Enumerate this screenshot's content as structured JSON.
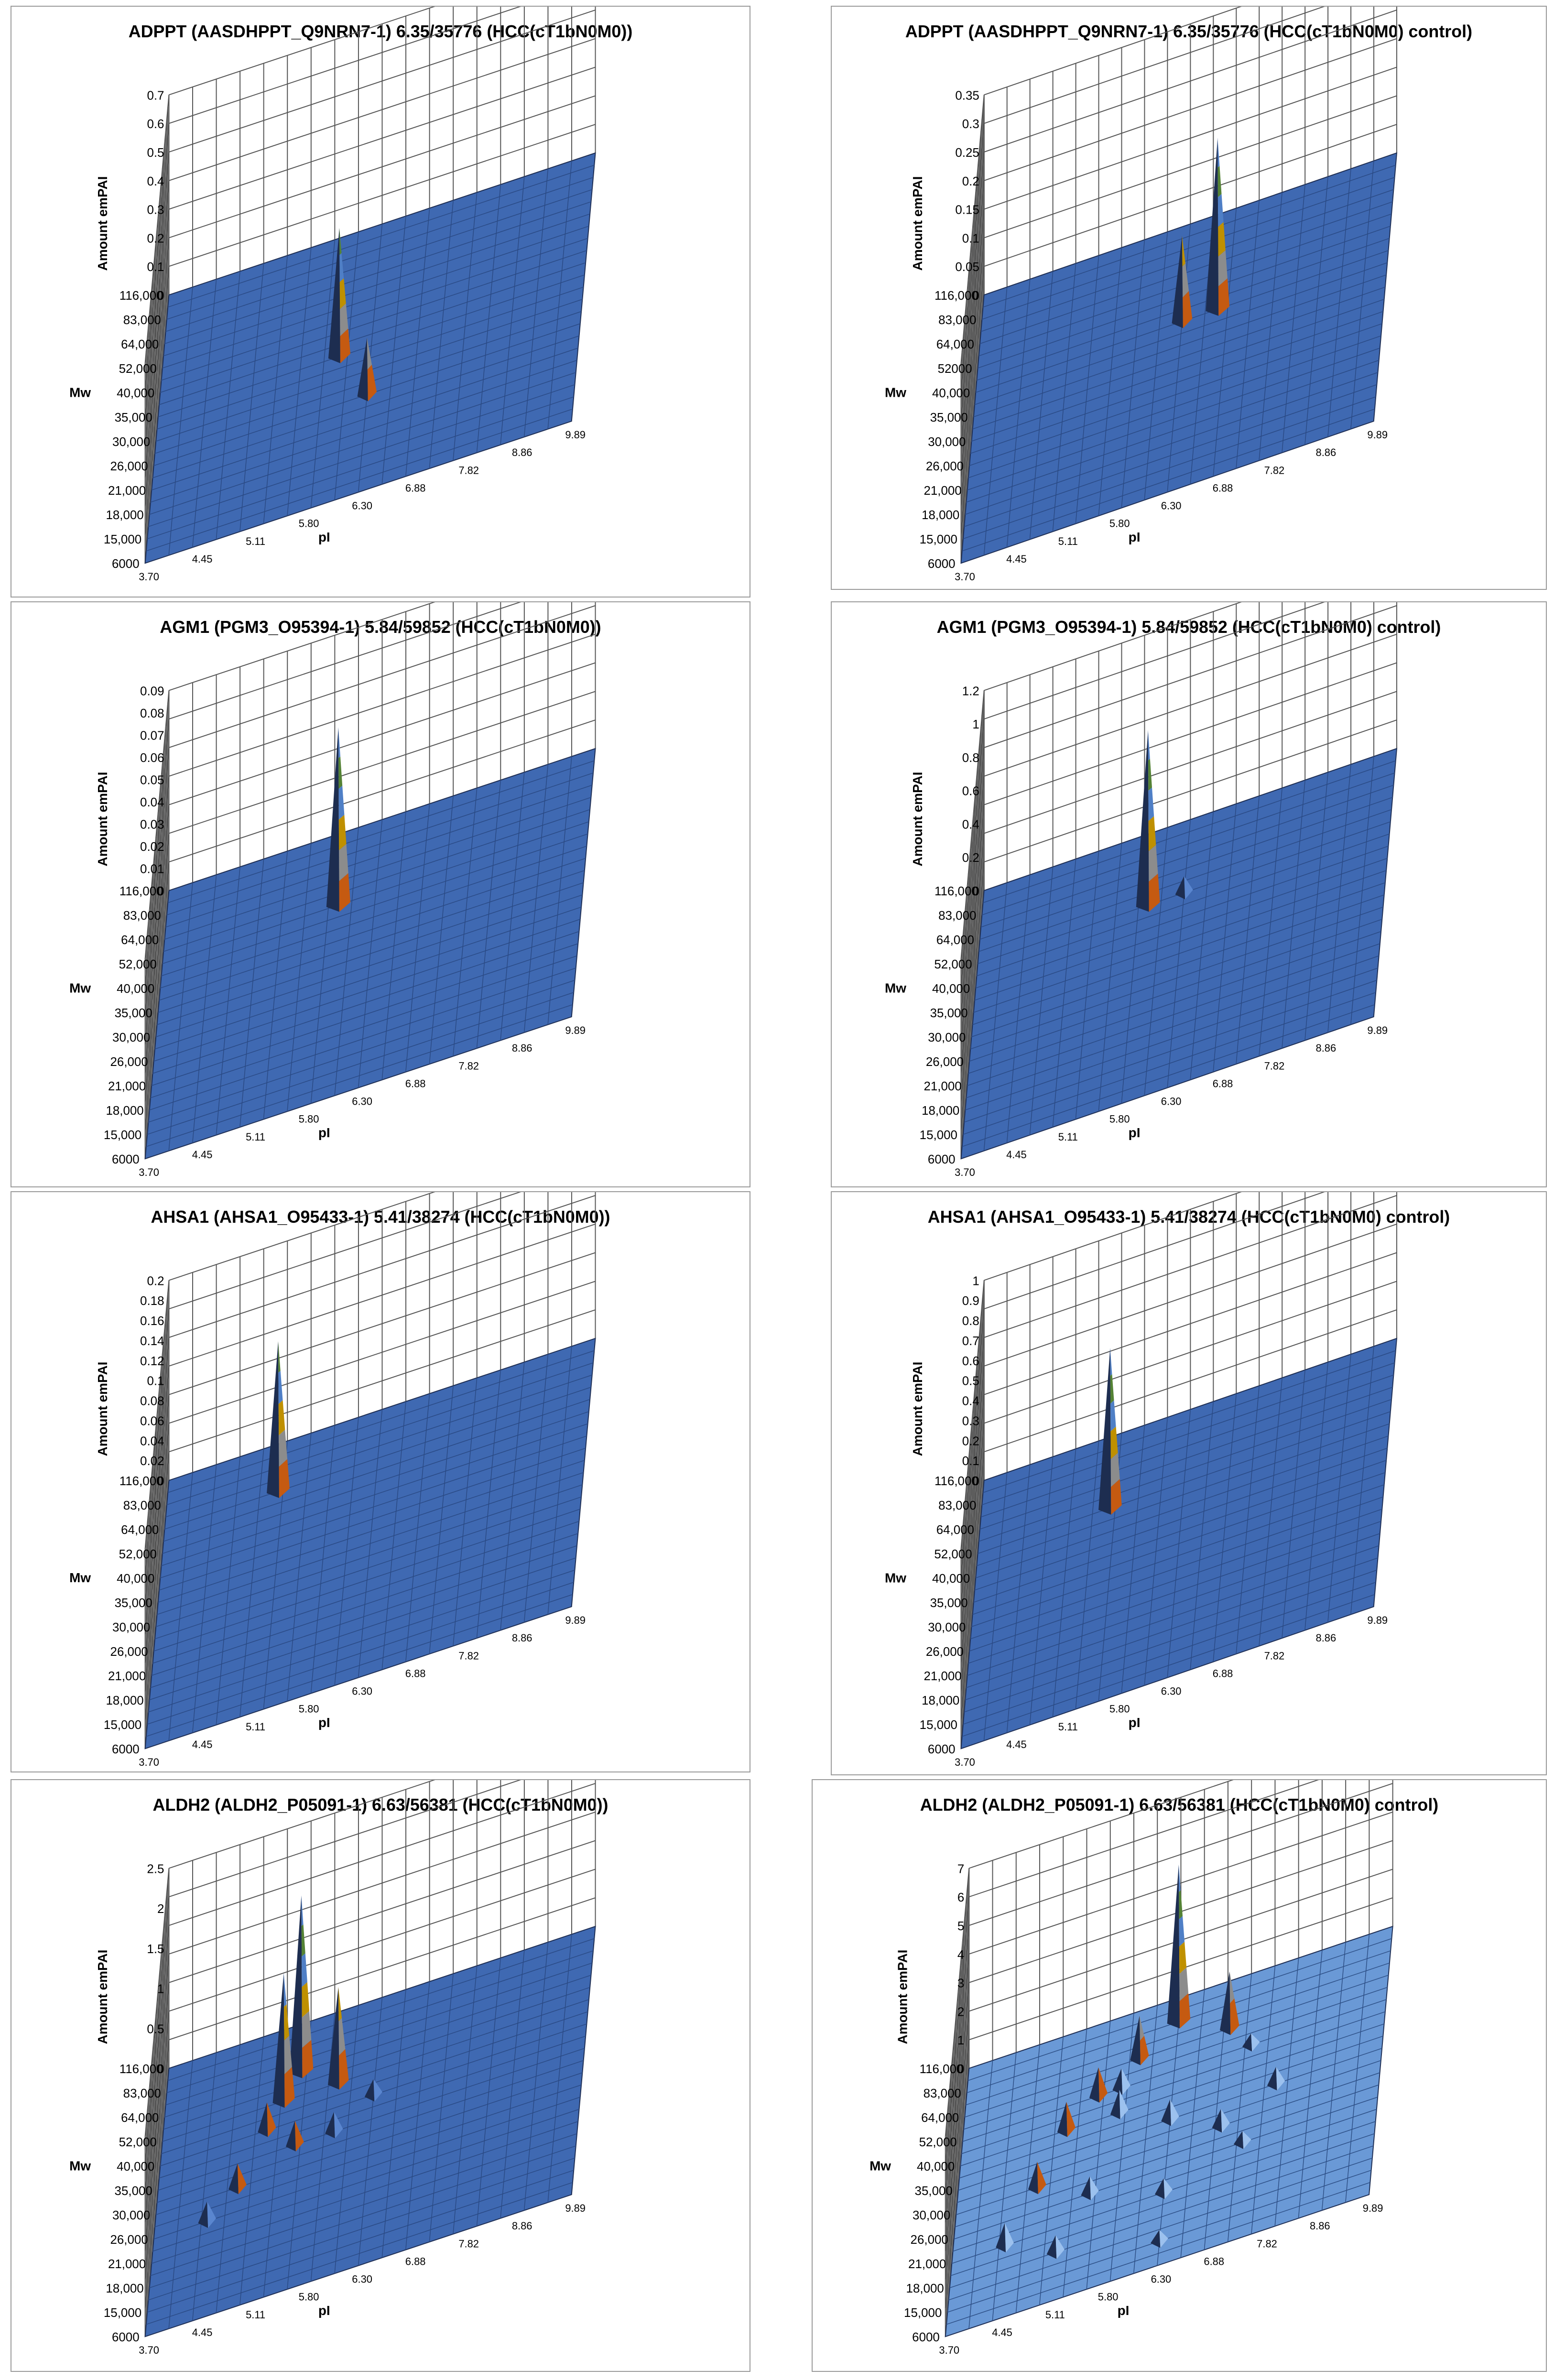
{
  "figure": {
    "axes": {
      "z_label": "Amount emPAI",
      "mw_label": "Mw",
      "pi_label": "pI",
      "mw_ticks": [
        "6000",
        "15,000",
        "18,000",
        "21,000",
        "26,000",
        "30,000",
        "35,000",
        "40,000",
        "52,000",
        "64,000",
        "83,000",
        "116,000"
      ],
      "mw_ticks_alt": [
        "6000",
        "15,000",
        "18,000",
        "21,000",
        "26,000",
        "30,000",
        "35,000",
        "40,000",
        "52000",
        "64,000",
        "83,000",
        "116,000"
      ],
      "pi_ticks": [
        "3.70",
        "4.45",
        "5.11",
        "5.80",
        "6.30",
        "6.88",
        "7.82",
        "8.86",
        "9.89"
      ]
    },
    "colors": {
      "floor": "#3F69B2",
      "floor_light": "#6A99D6",
      "grid": "#1f2f55",
      "blue": "#4F7FC6",
      "grey": "#8C8C8C",
      "orange": "#C55A11",
      "gold": "#BF9000",
      "green": "#548235",
      "pink": "#D99694"
    }
  },
  "chart_data": [
    {
      "type": "surface3d",
      "title": "ADPPT (AASDHPPT_Q9NRN7-1) 6.35/35776 (HCC(cT1bN0M0))",
      "zlim": [
        0,
        0.7
      ],
      "z_ticks": [
        "0",
        "0.1",
        "0.2",
        "0.3",
        "0.4",
        "0.5",
        "0.6",
        "0.7"
      ],
      "mw_tick_set": "standard",
      "peaks": [
        {
          "pi": 6.0,
          "mw": 35000,
          "value": 0.45
        },
        {
          "pi": 6.3,
          "mw": 26000,
          "value": 0.2
        }
      ]
    },
    {
      "type": "surface3d",
      "title": "ADPPT (AASDHPPT_Q9NRN7-1) 6.35/35776 (HCC(cT1bN0M0) control)",
      "zlim": [
        0,
        0.35
      ],
      "z_ticks": [
        "0",
        "0.05",
        "0.1",
        "0.15",
        "0.2",
        "0.25",
        "0.3",
        "0.35"
      ],
      "mw_tick_set": "alt",
      "peaks": [
        {
          "pi": 6.7,
          "mw": 40000,
          "value": 0.3
        },
        {
          "pi": 6.3,
          "mw": 40000,
          "value": 0.15
        }
      ]
    },
    {
      "type": "surface3d",
      "title": "AGM1 (PGM3_O95394-1) 5.84/59852 (HCC(cT1bN0M0))",
      "zlim": [
        0,
        0.09
      ],
      "z_ticks": [
        "0",
        "0.01",
        "0.02",
        "0.03",
        "0.04",
        "0.05",
        "0.06",
        "0.07",
        "0.08",
        "0.09"
      ],
      "mw_tick_set": "standard",
      "peaks": [
        {
          "pi": 5.95,
          "mw": 52000,
          "value": 0.08
        }
      ]
    },
    {
      "type": "surface3d",
      "title": "AGM1 (PGM3_O95394-1) 5.84/59852 (HCC(cT1bN0M0) control)",
      "zlim": [
        0,
        1.2
      ],
      "z_ticks": [
        "0",
        "0.2",
        "0.4",
        "0.6",
        "0.8",
        "1",
        "1.2"
      ],
      "mw_tick_set": "standard",
      "peaks": [
        {
          "pi": 5.95,
          "mw": 52000,
          "value": 1.05
        },
        {
          "pi": 6.3,
          "mw": 52000,
          "value": 0.1
        }
      ]
    },
    {
      "type": "surface3d",
      "title": "AHSA1 (AHSA1_O95433-1) 5.41/38274 (HCC(cT1bN0M0))",
      "zlim": [
        0,
        0.2
      ],
      "z_ticks": [
        "0",
        "0.02",
        "0.04",
        "0.06",
        "0.08",
        "0.1",
        "0.12",
        "0.14",
        "0.16",
        "0.18",
        "0.2"
      ],
      "mw_tick_set": "standard",
      "peaks": [
        {
          "pi": 5.2,
          "mw": 64000,
          "value": 0.15
        }
      ]
    },
    {
      "type": "surface3d",
      "title": "AHSA1 (AHSA1_O95433-1) 5.41/38274 (HCC(cT1bN0M0) control)",
      "zlim": [
        0,
        1
      ],
      "z_ticks": [
        "0",
        "0.1",
        "0.2",
        "0.3",
        "0.4",
        "0.5",
        "0.6",
        "0.7",
        "0.8",
        "0.9",
        "1"
      ],
      "mw_tick_set": "standard",
      "peaks": [
        {
          "pi": 5.5,
          "mw": 52000,
          "value": 0.8
        }
      ]
    },
    {
      "type": "surface3d",
      "title": "ALDH2 (ALDH2_P05091-1) 6.63/56381 (HCC(cT1bN0M0))",
      "zlim": [
        0,
        2.5
      ],
      "z_ticks": [
        "0",
        "0.5",
        "1",
        "1.5",
        "2",
        "2.5"
      ],
      "mw_tick_set": "standard",
      "floor_style": "dark",
      "peaks": [
        {
          "pi": 5.5,
          "mw": 64000,
          "value": 2.2
        },
        {
          "pi": 5.3,
          "mw": 52000,
          "value": 1.6
        },
        {
          "pi": 5.95,
          "mw": 52000,
          "value": 1.2
        },
        {
          "pi": 5.11,
          "mw": 40000,
          "value": 0.35
        },
        {
          "pi": 5.5,
          "mw": 35000,
          "value": 0.3
        },
        {
          "pi": 5.95,
          "mw": 35000,
          "value": 0.25
        },
        {
          "pi": 4.8,
          "mw": 30000,
          "value": 0.3
        },
        {
          "pi": 6.3,
          "mw": 40000,
          "value": 0.2
        },
        {
          "pi": 4.45,
          "mw": 26000,
          "value": 0.25
        }
      ]
    },
    {
      "type": "surface3d",
      "title": "ALDH2 (ALDH2_P05091-1) 6.63/56381 (HCC(cT1bN0M0) control)",
      "zlim": [
        0,
        7
      ],
      "z_ticks": [
        "0",
        "1",
        "2",
        "3",
        "4",
        "5",
        "6",
        "7"
      ],
      "mw_tick_set": "standard",
      "floor_style": "light",
      "peaks": [
        {
          "pi": 6.3,
          "mw": 83000,
          "value": 5.5
        },
        {
          "pi": 6.88,
          "mw": 64000,
          "value": 2.0
        },
        {
          "pi": 5.95,
          "mw": 64000,
          "value": 1.5
        },
        {
          "pi": 5.5,
          "mw": 52000,
          "value": 1.0
        },
        {
          "pi": 5.11,
          "mw": 40000,
          "value": 1.0
        },
        {
          "pi": 5.8,
          "mw": 40000,
          "value": 0.8
        },
        {
          "pi": 6.3,
          "mw": 35000,
          "value": 0.7
        },
        {
          "pi": 6.88,
          "mw": 30000,
          "value": 0.6
        },
        {
          "pi": 4.8,
          "mw": 30000,
          "value": 0.9
        },
        {
          "pi": 5.5,
          "mw": 26000,
          "value": 0.6
        },
        {
          "pi": 7.82,
          "mw": 35000,
          "value": 0.6
        },
        {
          "pi": 4.45,
          "mw": 21000,
          "value": 0.8
        },
        {
          "pi": 5.11,
          "mw": 18000,
          "value": 0.6
        },
        {
          "pi": 6.3,
          "mw": 21000,
          "value": 0.5
        },
        {
          "pi": 7.3,
          "mw": 52000,
          "value": 0.4
        },
        {
          "pi": 6.3,
          "mw": 15000,
          "value": 0.4
        },
        {
          "pi": 5.8,
          "mw": 52000,
          "value": 0.7
        },
        {
          "pi": 7.3,
          "mw": 26000,
          "value": 0.4
        }
      ]
    }
  ]
}
